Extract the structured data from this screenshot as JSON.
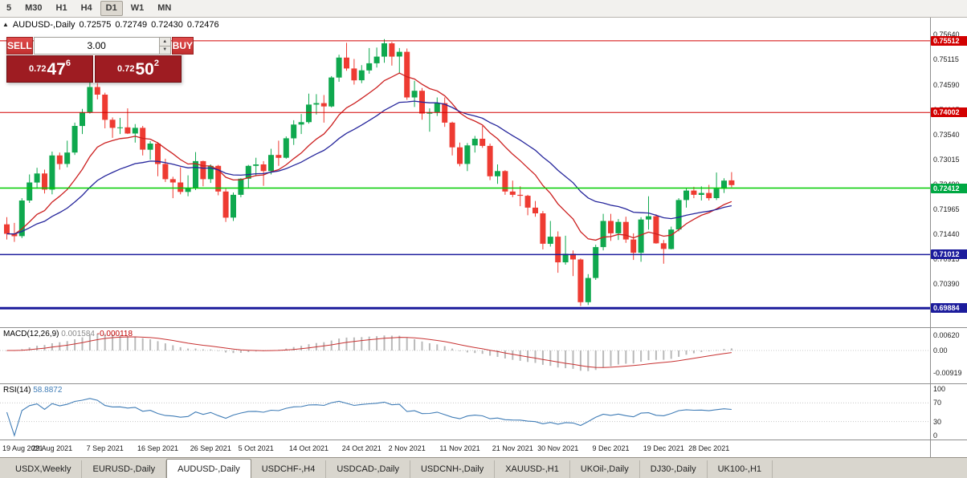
{
  "icons": {
    "collapse": "▲",
    "spin_up": "▲",
    "spin_down": "▼"
  },
  "toolbar": {
    "timeframes": [
      "5",
      "M30",
      "H1",
      "H4",
      "D1",
      "W1",
      "MN"
    ],
    "active": "D1"
  },
  "chart_header": {
    "symbol_label": "AUDUSD-,Daily",
    "open": "0.72575",
    "high": "0.72749",
    "low": "0.72430",
    "close": "0.72476"
  },
  "trade_panel": {
    "sell_label": "SELL",
    "buy_label": "BUY",
    "volume": "3.00",
    "bid": {
      "prefix": "0.72",
      "big": "47",
      "sup": "6"
    },
    "ask": {
      "prefix": "0.72",
      "big": "50",
      "sup": "2"
    }
  },
  "price_axis": {
    "ticks": [
      "0.75640",
      "0.75115",
      "0.74590",
      "0.74065",
      "0.73540",
      "0.73015",
      "0.72490",
      "0.71965",
      "0.71440",
      "0.70915",
      "0.70390",
      "0.69865"
    ],
    "badges": [
      {
        "text": "0.75512",
        "price": 0.75512,
        "color": "#d20000"
      },
      {
        "text": "0.74002",
        "price": 0.74002,
        "color": "#d20000"
      },
      {
        "text": "0.72412",
        "price": 0.72412,
        "color": "#00a843"
      },
      {
        "text": "0.71012",
        "price": 0.71012,
        "color": "#1c1c9c"
      },
      {
        "text": "0.69884",
        "price": 0.69884,
        "color": "#1c1c9c"
      }
    ]
  },
  "macd": {
    "label": "MACD(12,26,9)",
    "value1": "0.001584",
    "value2": "-0.000118",
    "axis": [
      "0.00620",
      "0.00",
      "-0.00919"
    ]
  },
  "rsi": {
    "label": "RSI(14)",
    "value": "58.8872",
    "axis": [
      "100",
      "70",
      "30",
      "0"
    ]
  },
  "tabs": [
    "USDX,Weekly",
    "EURUSD-,Daily",
    "AUDUSD-,Daily",
    "USDCHF-,H4",
    "USDCAD-,Daily",
    "USDCNH-,Daily",
    "XAUUSD-,H1",
    "UKOil-,Daily",
    "DJ30-,Daily",
    "UK100-,H1"
  ],
  "active_tab": "AUDUSD-,Daily",
  "chart_data": {
    "type": "candlestick",
    "symbol": "AUDUSD",
    "timeframe": "Daily",
    "price_range": [
      0.695,
      0.76
    ],
    "ma_fast": 12,
    "ma_slow": 26,
    "rsi_period": 14,
    "colors": {
      "up": "#0fa84e",
      "down": "#ee3b32",
      "ma_fast": "#cc2020",
      "ma_slow": "#26269c",
      "macd_hist": "#b9b9b9",
      "macd_signal": "#c83232",
      "rsi": "#3f7cb6"
    },
    "hlines": [
      {
        "price": 0.75512,
        "color": "#d20000",
        "width": 1
      },
      {
        "price": 0.74002,
        "color": "#d20000",
        "width": 1
      },
      {
        "price": 0.72412,
        "color": "#00cc00",
        "width": 1.5
      },
      {
        "price": 0.71012,
        "color": "#1c1c9c",
        "width": 1.5
      },
      {
        "price": 0.69884,
        "color": "#1c1c9c",
        "width": 3
      }
    ],
    "x_ticks": [
      {
        "label": "19 Aug 2021",
        "i": 0
      },
      {
        "label": "29 Aug 2021",
        "i": 6
      },
      {
        "label": "7 Sep 2021",
        "i": 13
      },
      {
        "label": "16 Sep 2021",
        "i": 20
      },
      {
        "label": "26 Sep 2021",
        "i": 27
      },
      {
        "label": "5 Oct 2021",
        "i": 33
      },
      {
        "label": "14 Oct 2021",
        "i": 40
      },
      {
        "label": "24 Oct 2021",
        "i": 47
      },
      {
        "label": "2 Nov 2021",
        "i": 53
      },
      {
        "label": "11 Nov 2021",
        "i": 60
      },
      {
        "label": "21 Nov 2021",
        "i": 67
      },
      {
        "label": "30 Nov 2021",
        "i": 73
      },
      {
        "label": "9 Dec 2021",
        "i": 80
      },
      {
        "label": "19 Dec 2021",
        "i": 87
      },
      {
        "label": "28 Dec 2021",
        "i": 93
      }
    ],
    "candles": [
      [
        0.7165,
        0.718,
        0.7133,
        0.7145
      ],
      [
        0.7145,
        0.7168,
        0.7128,
        0.714
      ],
      [
        0.714,
        0.722,
        0.7136,
        0.7215
      ],
      [
        0.7215,
        0.727,
        0.721,
        0.7253
      ],
      [
        0.7253,
        0.7284,
        0.724,
        0.7272
      ],
      [
        0.7272,
        0.728,
        0.723,
        0.7238
      ],
      [
        0.7238,
        0.7318,
        0.7228,
        0.731
      ],
      [
        0.731,
        0.7316,
        0.728,
        0.7292
      ],
      [
        0.7292,
        0.7341,
        0.7285,
        0.7316
      ],
      [
        0.7316,
        0.7379,
        0.7311,
        0.7372
      ],
      [
        0.7372,
        0.7408,
        0.7355,
        0.7401
      ],
      [
        0.7401,
        0.7478,
        0.7398,
        0.7454
      ],
      [
        0.7454,
        0.7462,
        0.7428,
        0.7438
      ],
      [
        0.7438,
        0.7442,
        0.7367,
        0.7385
      ],
      [
        0.7385,
        0.739,
        0.7347,
        0.7368
      ],
      [
        0.7368,
        0.7389,
        0.7355,
        0.7369
      ],
      [
        0.7369,
        0.7409,
        0.7355,
        0.7356
      ],
      [
        0.7356,
        0.7376,
        0.7337,
        0.7368
      ],
      [
        0.7368,
        0.7372,
        0.731,
        0.7322
      ],
      [
        0.7322,
        0.734,
        0.7301,
        0.7335
      ],
      [
        0.7335,
        0.7338,
        0.7266,
        0.7292
      ],
      [
        0.7292,
        0.7303,
        0.7254,
        0.726
      ],
      [
        0.726,
        0.7265,
        0.722,
        0.7253
      ],
      [
        0.7253,
        0.7285,
        0.7228,
        0.7233
      ],
      [
        0.7233,
        0.7268,
        0.7224,
        0.7241
      ],
      [
        0.7241,
        0.7317,
        0.7237,
        0.7298
      ],
      [
        0.7298,
        0.7299,
        0.7245,
        0.726
      ],
      [
        0.726,
        0.7291,
        0.7252,
        0.7288
      ],
      [
        0.7288,
        0.729,
        0.7226,
        0.7234
      ],
      [
        0.7234,
        0.724,
        0.717,
        0.7179
      ],
      [
        0.7179,
        0.7232,
        0.7172,
        0.7227
      ],
      [
        0.7227,
        0.7262,
        0.7222,
        0.7261
      ],
      [
        0.7261,
        0.729,
        0.724,
        0.7288
      ],
      [
        0.7288,
        0.7305,
        0.7266,
        0.7291
      ],
      [
        0.7291,
        0.7298,
        0.7246,
        0.7277
      ],
      [
        0.7277,
        0.7324,
        0.727,
        0.7311
      ],
      [
        0.7311,
        0.7341,
        0.7288,
        0.7305
      ],
      [
        0.7305,
        0.735,
        0.7303,
        0.7346
      ],
      [
        0.7346,
        0.7384,
        0.7332,
        0.7375
      ],
      [
        0.7375,
        0.7397,
        0.7355,
        0.738
      ],
      [
        0.738,
        0.744,
        0.7377,
        0.7417
      ],
      [
        0.7417,
        0.7439,
        0.7396,
        0.742
      ],
      [
        0.742,
        0.7437,
        0.7379,
        0.7413
      ],
      [
        0.7413,
        0.7477,
        0.7411,
        0.7474
      ],
      [
        0.7474,
        0.7522,
        0.7465,
        0.7516
      ],
      [
        0.7516,
        0.7547,
        0.7488,
        0.7493
      ],
      [
        0.7493,
        0.7513,
        0.7459,
        0.7468
      ],
      [
        0.7468,
        0.75,
        0.7462,
        0.7489
      ],
      [
        0.7489,
        0.7536,
        0.7482,
        0.7504
      ],
      [
        0.7504,
        0.7537,
        0.7495,
        0.7518
      ],
      [
        0.7518,
        0.7555,
        0.7505,
        0.7546
      ],
      [
        0.7546,
        0.7549,
        0.7499,
        0.7518
      ],
      [
        0.7518,
        0.7536,
        0.7482,
        0.7528
      ],
      [
        0.7528,
        0.7535,
        0.7427,
        0.7432
      ],
      [
        0.7432,
        0.7467,
        0.7412,
        0.7446
      ],
      [
        0.7446,
        0.7452,
        0.7385,
        0.7398
      ],
      [
        0.7398,
        0.7409,
        0.736,
        0.7401
      ],
      [
        0.7401,
        0.7432,
        0.7393,
        0.742
      ],
      [
        0.742,
        0.7432,
        0.737,
        0.7379
      ],
      [
        0.7379,
        0.7381,
        0.731,
        0.7327
      ],
      [
        0.7327,
        0.7337,
        0.7287,
        0.7292
      ],
      [
        0.7292,
        0.7336,
        0.7277,
        0.7331
      ],
      [
        0.7331,
        0.7351,
        0.7316,
        0.7345
      ],
      [
        0.7345,
        0.7372,
        0.7326,
        0.733
      ],
      [
        0.733,
        0.7335,
        0.7258,
        0.7266
      ],
      [
        0.7266,
        0.7291,
        0.725,
        0.7277
      ],
      [
        0.7277,
        0.7279,
        0.7227,
        0.7234
      ],
      [
        0.7234,
        0.7257,
        0.7222,
        0.7227
      ],
      [
        0.7227,
        0.7245,
        0.7203,
        0.7225
      ],
      [
        0.7225,
        0.7227,
        0.7184,
        0.72
      ],
      [
        0.72,
        0.7214,
        0.7181,
        0.7188
      ],
      [
        0.7188,
        0.7193,
        0.7112,
        0.7124
      ],
      [
        0.7124,
        0.7172,
        0.7118,
        0.7139
      ],
      [
        0.7139,
        0.715,
        0.7063,
        0.7085
      ],
      [
        0.7085,
        0.7141,
        0.708,
        0.7103
      ],
      [
        0.7103,
        0.711,
        0.7056,
        0.7091
      ],
      [
        0.7091,
        0.7093,
        0.6993,
        0.7001
      ],
      [
        0.7001,
        0.706,
        0.6995,
        0.7052
      ],
      [
        0.7052,
        0.7122,
        0.7048,
        0.7117
      ],
      [
        0.7117,
        0.7187,
        0.711,
        0.7172
      ],
      [
        0.7172,
        0.7187,
        0.713,
        0.7146
      ],
      [
        0.7146,
        0.7176,
        0.7132,
        0.717
      ],
      [
        0.717,
        0.7181,
        0.7126,
        0.7133
      ],
      [
        0.7133,
        0.7146,
        0.709,
        0.7105
      ],
      [
        0.7105,
        0.718,
        0.7086,
        0.7175
      ],
      [
        0.7175,
        0.7224,
        0.7154,
        0.7182
      ],
      [
        0.7182,
        0.7186,
        0.7124,
        0.7125
      ],
      [
        0.7125,
        0.7132,
        0.7082,
        0.7113
      ],
      [
        0.7113,
        0.716,
        0.7112,
        0.7154
      ],
      [
        0.7154,
        0.722,
        0.715,
        0.7216
      ],
      [
        0.7216,
        0.7242,
        0.72,
        0.7236
      ],
      [
        0.7236,
        0.7244,
        0.722,
        0.7227
      ],
      [
        0.7227,
        0.7245,
        0.7215,
        0.7231
      ],
      [
        0.7231,
        0.7248,
        0.7215,
        0.722
      ],
      [
        0.722,
        0.7274,
        0.7216,
        0.724
      ],
      [
        0.724,
        0.7262,
        0.7231,
        0.7257
      ],
      [
        0.72575,
        0.72749,
        0.7243,
        0.72476
      ]
    ]
  }
}
